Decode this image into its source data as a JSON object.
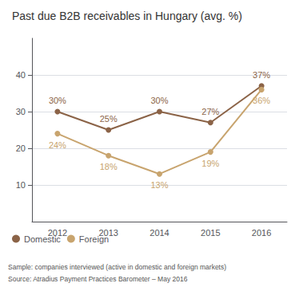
{
  "chart_data": {
    "type": "line",
    "title": "Past due B2B receivables in Hungary (avg. %)",
    "categories": [
      "2012",
      "2013",
      "2014",
      "2015",
      "2016"
    ],
    "series": [
      {
        "name": "Domestic",
        "color": "#8B6347",
        "marker": "circle",
        "values": [
          30,
          25,
          30,
          27,
          37
        ],
        "value_labels": [
          "30%",
          "25%",
          "30%",
          "27%",
          "37%"
        ]
      },
      {
        "name": "Foreign",
        "color": "#C8A46E",
        "marker": "circle",
        "values": [
          24,
          18,
          13,
          19,
          36
        ],
        "value_labels": [
          "24%",
          "18%",
          "13%",
          "19%",
          "36%"
        ]
      }
    ],
    "ylim": [
      0,
      50
    ],
    "yticks": [
      10,
      20,
      30,
      40
    ],
    "grid": true,
    "data_labels": true,
    "legend": "bottom left",
    "annotations": [
      "Sample: companies interviewed (active in domestic and foreign markets)",
      "Source: Atradius Payment Practices Barometer – May 2016"
    ]
  }
}
